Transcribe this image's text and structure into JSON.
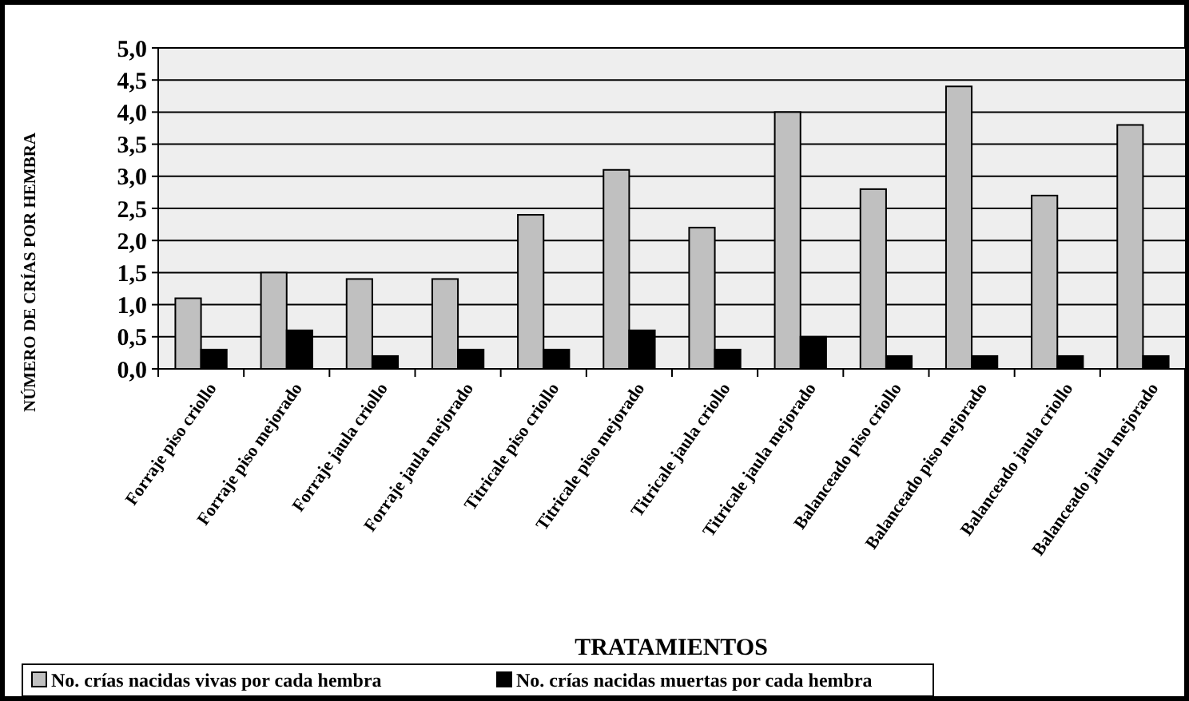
{
  "chart_data": {
    "type": "bar",
    "xlabel": "TRATAMIENTOS",
    "ylabel": "NÚMERO DE CRÍAS POR HEMBRA",
    "categories": [
      "Forraje piso criollo",
      "Forraje piso mejorado",
      "Forraje jaula criollo",
      "Forraje jaula mejorado",
      "Titricale piso criollo",
      "Titricale piso mejorado",
      "Titricale jaula criollo",
      "Titricale jaula mejorado",
      "Balanceado piso criollo",
      "Balanceado piso mejorado",
      "Balanceado jaula criollo",
      "Balanceado jaula mejorado"
    ],
    "series": [
      {
        "name": "No. crías nacidas vivas por cada hembra",
        "color": "#c0c0c0",
        "values": [
          1.1,
          1.5,
          1.4,
          1.4,
          2.4,
          3.1,
          2.2,
          4.0,
          2.8,
          4.4,
          2.7,
          3.8
        ]
      },
      {
        "name": "No. crías nacidas muertas por cada hembra",
        "color": "#000000",
        "values": [
          0.3,
          0.6,
          0.2,
          0.3,
          0.3,
          0.6,
          0.3,
          0.5,
          0.2,
          0.2,
          0.2,
          0.2
        ]
      }
    ],
    "ylim": [
      0,
      5
    ],
    "yticks": [
      {
        "value": 0,
        "label": "0,0"
      },
      {
        "value": 0.5,
        "label": "0,5"
      },
      {
        "value": 1,
        "label": "1,0"
      },
      {
        "value": 1.5,
        "label": "1,5"
      },
      {
        "value": 2,
        "label": "2,0"
      },
      {
        "value": 2.5,
        "label": "2,5"
      },
      {
        "value": 3,
        "label": "3,0"
      },
      {
        "value": 3.5,
        "label": "3,5"
      },
      {
        "value": 4,
        "label": "4,0"
      },
      {
        "value": 4.5,
        "label": "4,5"
      },
      {
        "value": 5,
        "label": "5,0"
      }
    ],
    "grid": "y",
    "legend": "bottom left"
  }
}
